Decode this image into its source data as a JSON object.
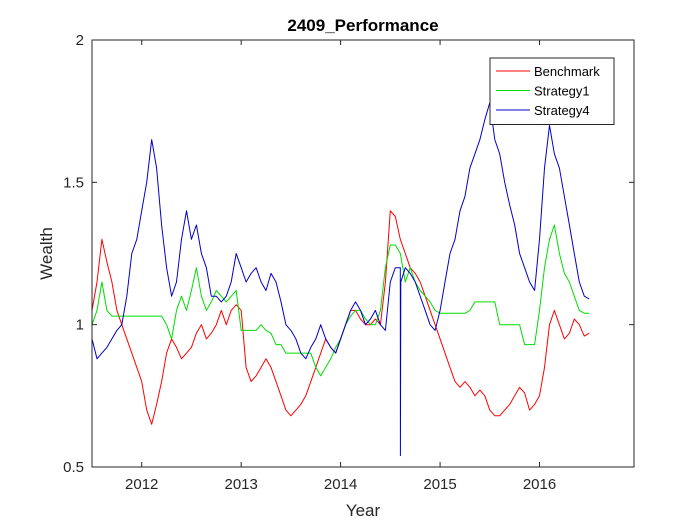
{
  "chart_data": {
    "type": "line",
    "title": "2409_Performance",
    "xlabel": "Year",
    "ylabel": "Wealth",
    "xlim": [
      2011.5,
      2016.95
    ],
    "ylim": [
      0.5,
      2
    ],
    "x_ticks": [
      2012,
      2013,
      2014,
      2015,
      2016
    ],
    "x_tick_labels": [
      "2012",
      "2013",
      "2014",
      "2015",
      "2016"
    ],
    "y_ticks": [
      0.5,
      1,
      1.5,
      2
    ],
    "y_tick_labels": [
      "0.5",
      "1",
      "1.5",
      "2"
    ],
    "grid": false,
    "legend": {
      "position": "top-right"
    },
    "series": [
      {
        "name": "Benchmark",
        "color": "#ff0000",
        "x": [
          2011.5,
          2011.55,
          2011.6,
          2011.65,
          2011.7,
          2011.75,
          2011.8,
          2011.85,
          2011.9,
          2011.95,
          2012.0,
          2012.05,
          2012.1,
          2012.15,
          2012.2,
          2012.25,
          2012.3,
          2012.35,
          2012.4,
          2012.45,
          2012.5,
          2012.55,
          2012.6,
          2012.65,
          2012.7,
          2012.75,
          2012.8,
          2012.85,
          2012.9,
          2012.95,
          2013.0,
          2013.05,
          2013.1,
          2013.15,
          2013.2,
          2013.25,
          2013.3,
          2013.35,
          2013.4,
          2013.45,
          2013.5,
          2013.55,
          2013.6,
          2013.65,
          2013.7,
          2013.75,
          2013.8,
          2013.85,
          2013.9,
          2013.95,
          2014.0,
          2014.05,
          2014.1,
          2014.15,
          2014.2,
          2014.25,
          2014.3,
          2014.35,
          2014.4,
          2014.45,
          2014.5,
          2014.55,
          2014.6,
          2014.65,
          2014.7,
          2014.75,
          2014.8,
          2014.85,
          2014.9,
          2014.95,
          2015.0,
          2015.05,
          2015.1,
          2015.15,
          2015.2,
          2015.25,
          2015.3,
          2015.35,
          2015.4,
          2015.45,
          2015.5,
          2015.55,
          2015.6,
          2015.65,
          2015.7,
          2015.75,
          2015.8,
          2015.85,
          2015.9,
          2015.95,
          2016.0,
          2016.05,
          2016.1,
          2016.15,
          2016.2,
          2016.25,
          2016.3,
          2016.35,
          2016.4,
          2016.45,
          2016.5
        ],
        "y": [
          1.05,
          1.15,
          1.3,
          1.22,
          1.15,
          1.05,
          1.0,
          0.95,
          0.9,
          0.85,
          0.8,
          0.7,
          0.65,
          0.72,
          0.8,
          0.9,
          0.95,
          0.92,
          0.88,
          0.9,
          0.92,
          0.97,
          1.0,
          0.95,
          0.97,
          1.0,
          1.05,
          1.0,
          1.05,
          1.07,
          1.05,
          0.85,
          0.8,
          0.82,
          0.85,
          0.88,
          0.85,
          0.8,
          0.75,
          0.7,
          0.68,
          0.7,
          0.72,
          0.75,
          0.8,
          0.85,
          0.9,
          0.95,
          0.92,
          0.9,
          0.95,
          1.0,
          1.05,
          1.05,
          1.02,
          1.0,
          1.0,
          1.02,
          1.0,
          1.15,
          1.4,
          1.38,
          1.3,
          1.25,
          1.2,
          1.18,
          1.15,
          1.1,
          1.05,
          1.0,
          0.95,
          0.9,
          0.85,
          0.8,
          0.78,
          0.8,
          0.78,
          0.75,
          0.77,
          0.75,
          0.7,
          0.68,
          0.68,
          0.7,
          0.72,
          0.75,
          0.78,
          0.76,
          0.7,
          0.72,
          0.75,
          0.85,
          1.0,
          1.05,
          1.0,
          0.95,
          0.97,
          1.02,
          1.0,
          0.96,
          0.97
        ]
      },
      {
        "name": "Strategy1",
        "color": "#00dd00",
        "x": [
          2011.5,
          2011.55,
          2011.6,
          2011.65,
          2011.7,
          2011.75,
          2011.8,
          2011.85,
          2011.9,
          2011.95,
          2012.0,
          2012.05,
          2012.1,
          2012.15,
          2012.2,
          2012.25,
          2012.3,
          2012.35,
          2012.4,
          2012.45,
          2012.5,
          2012.55,
          2012.6,
          2012.65,
          2012.7,
          2012.75,
          2012.8,
          2012.85,
          2012.9,
          2012.95,
          2013.0,
          2013.05,
          2013.1,
          2013.15,
          2013.2,
          2013.25,
          2013.3,
          2013.35,
          2013.4,
          2013.45,
          2013.5,
          2013.55,
          2013.6,
          2013.65,
          2013.7,
          2013.75,
          2013.8,
          2013.85,
          2013.9,
          2013.95,
          2014.0,
          2014.05,
          2014.1,
          2014.15,
          2014.2,
          2014.25,
          2014.3,
          2014.35,
          2014.4,
          2014.45,
          2014.5,
          2014.55,
          2014.6,
          2014.65,
          2014.7,
          2014.75,
          2014.8,
          2014.85,
          2014.9,
          2014.95,
          2015.0,
          2015.05,
          2015.1,
          2015.15,
          2015.2,
          2015.25,
          2015.3,
          2015.35,
          2015.4,
          2015.45,
          2015.5,
          2015.55,
          2015.6,
          2015.65,
          2015.7,
          2015.75,
          2015.8,
          2015.85,
          2015.9,
          2015.95,
          2016.0,
          2016.05,
          2016.1,
          2016.15,
          2016.2,
          2016.25,
          2016.3,
          2016.35,
          2016.4,
          2016.45,
          2016.5
        ],
        "y": [
          1.0,
          1.05,
          1.15,
          1.05,
          1.03,
          1.03,
          1.03,
          1.03,
          1.03,
          1.03,
          1.03,
          1.03,
          1.03,
          1.03,
          1.03,
          1.0,
          0.95,
          1.05,
          1.1,
          1.05,
          1.12,
          1.2,
          1.1,
          1.05,
          1.08,
          1.12,
          1.1,
          1.08,
          1.1,
          1.12,
          0.98,
          0.98,
          0.98,
          0.98,
          1.0,
          0.98,
          0.97,
          0.93,
          0.93,
          0.9,
          0.9,
          0.9,
          0.9,
          0.9,
          0.9,
          0.85,
          0.82,
          0.85,
          0.88,
          0.92,
          0.95,
          1.0,
          1.03,
          1.05,
          1.05,
          1.02,
          1.0,
          1.0,
          1.05,
          1.2,
          1.28,
          1.28,
          1.25,
          1.15,
          1.2,
          1.15,
          1.12,
          1.1,
          1.08,
          1.05,
          1.04,
          1.04,
          1.04,
          1.04,
          1.04,
          1.04,
          1.05,
          1.08,
          1.08,
          1.08,
          1.08,
          1.08,
          1.0,
          1.0,
          1.0,
          1.0,
          1.0,
          0.93,
          0.93,
          0.93,
          1.05,
          1.2,
          1.3,
          1.35,
          1.25,
          1.18,
          1.15,
          1.1,
          1.05,
          1.04,
          1.04
        ]
      },
      {
        "name": "Strategy4",
        "color": "#0000cc",
        "x": [
          2011.5,
          2011.55,
          2011.6,
          2011.65,
          2011.7,
          2011.75,
          2011.8,
          2011.85,
          2011.9,
          2011.95,
          2012.0,
          2012.05,
          2012.1,
          2012.15,
          2012.2,
          2012.25,
          2012.3,
          2012.35,
          2012.4,
          2012.45,
          2012.5,
          2012.55,
          2012.6,
          2012.65,
          2012.7,
          2012.75,
          2012.8,
          2012.85,
          2012.9,
          2012.95,
          2013.0,
          2013.05,
          2013.1,
          2013.15,
          2013.2,
          2013.25,
          2013.3,
          2013.35,
          2013.4,
          2013.45,
          2013.5,
          2013.55,
          2013.6,
          2013.65,
          2013.7,
          2013.75,
          2013.8,
          2013.85,
          2013.9,
          2013.95,
          2014.0,
          2014.05,
          2014.1,
          2014.15,
          2014.2,
          2014.25,
          2014.3,
          2014.35,
          2014.4,
          2014.45,
          2014.5,
          2014.55,
          2014.6,
          2014.601,
          2014.605,
          2014.65,
          2014.7,
          2014.75,
          2014.8,
          2014.85,
          2014.9,
          2014.95,
          2015.0,
          2015.05,
          2015.1,
          2015.15,
          2015.2,
          2015.25,
          2015.3,
          2015.35,
          2015.4,
          2015.45,
          2015.5,
          2015.55,
          2015.6,
          2015.65,
          2015.7,
          2015.75,
          2015.8,
          2015.85,
          2015.9,
          2015.95,
          2016.0,
          2016.05,
          2016.1,
          2016.15,
          2016.2,
          2016.25,
          2016.3,
          2016.35,
          2016.4,
          2016.45,
          2016.5
        ],
        "y": [
          0.95,
          0.88,
          0.9,
          0.92,
          0.95,
          0.98,
          1.0,
          1.1,
          1.25,
          1.3,
          1.4,
          1.5,
          1.65,
          1.55,
          1.35,
          1.2,
          1.1,
          1.15,
          1.3,
          1.4,
          1.3,
          1.35,
          1.25,
          1.2,
          1.1,
          1.1,
          1.08,
          1.1,
          1.15,
          1.25,
          1.2,
          1.15,
          1.18,
          1.2,
          1.15,
          1.12,
          1.18,
          1.15,
          1.08,
          1.0,
          0.98,
          0.95,
          0.9,
          0.88,
          0.92,
          0.95,
          1.0,
          0.95,
          0.92,
          0.9,
          0.95,
          1.0,
          1.05,
          1.08,
          1.05,
          1.0,
          1.02,
          1.05,
          1.0,
          0.98,
          1.15,
          1.2,
          1.2,
          0.54,
          1.15,
          1.2,
          1.18,
          1.15,
          1.1,
          1.05,
          1.0,
          0.98,
          1.05,
          1.15,
          1.25,
          1.3,
          1.4,
          1.45,
          1.55,
          1.6,
          1.65,
          1.72,
          1.78,
          1.65,
          1.6,
          1.5,
          1.42,
          1.35,
          1.25,
          1.2,
          1.15,
          1.12,
          1.3,
          1.55,
          1.7,
          1.6,
          1.55,
          1.45,
          1.35,
          1.25,
          1.15,
          1.1,
          1.09
        ]
      }
    ]
  }
}
